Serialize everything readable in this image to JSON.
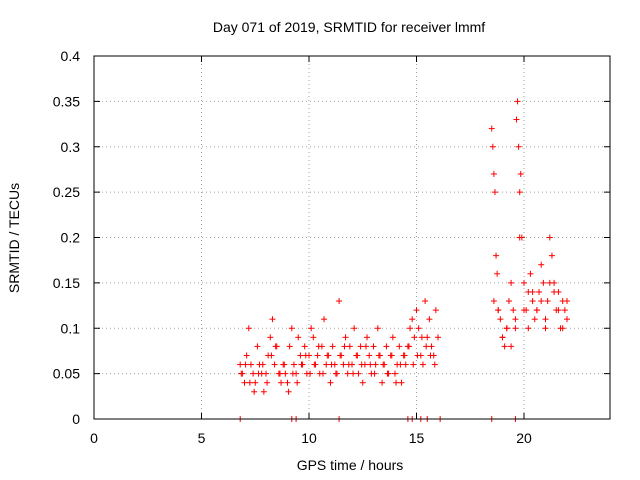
{
  "chart_data": {
    "type": "scatter",
    "title": "Day 071 of 2019, SRMTID for receiver lmmf",
    "xlabel": "GPS time / hours",
    "ylabel": "SRMTID / TECUs",
    "xlim": [
      0,
      24
    ],
    "ylim": [
      0,
      0.4
    ],
    "xticks": [
      "0",
      "5",
      "10",
      "15",
      "20"
    ],
    "yticks": [
      "0",
      "0.05",
      "0.1",
      "0.15",
      "0.2",
      "0.25",
      "0.3",
      "0.35",
      "0.4"
    ],
    "grid": true,
    "marker": "+",
    "color": "#ff0000",
    "series": [
      {
        "name": "SRMTID",
        "x": [
          6.8,
          6.9,
          7.0,
          7.1,
          7.2,
          7.3,
          7.4,
          7.5,
          7.6,
          7.7,
          7.8,
          7.9,
          8.0,
          8.1,
          8.2,
          8.3,
          8.4,
          8.5,
          8.6,
          8.7,
          8.8,
          8.9,
          9.0,
          9.1,
          9.2,
          9.3,
          9.4,
          9.5,
          9.6,
          9.7,
          9.8,
          9.9,
          10.0,
          10.1,
          10.2,
          10.3,
          10.4,
          10.5,
          10.6,
          10.7,
          10.8,
          10.9,
          11.0,
          11.1,
          11.2,
          11.3,
          11.4,
          11.5,
          11.6,
          11.7,
          11.8,
          11.9,
          12.0,
          12.1,
          12.2,
          12.3,
          12.4,
          12.5,
          12.6,
          12.7,
          12.8,
          12.9,
          13.0,
          13.1,
          13.2,
          13.3,
          13.4,
          13.5,
          13.6,
          13.7,
          13.8,
          13.9,
          14.0,
          14.1,
          14.2,
          14.3,
          14.4,
          14.5,
          14.6,
          14.7,
          14.8,
          14.9,
          15.0,
          15.1,
          15.2,
          15.3,
          15.4,
          15.5,
          15.6,
          15.7,
          15.8,
          15.9,
          16.0,
          18.5,
          18.55,
          18.6,
          18.65,
          18.7,
          18.75,
          18.8,
          18.9,
          19.0,
          19.1,
          19.2,
          19.3,
          19.4,
          19.5,
          19.6,
          19.65,
          19.7,
          19.75,
          19.8,
          19.85,
          19.9,
          20.0,
          20.1,
          20.2,
          20.3,
          20.4,
          20.5,
          20.6,
          20.7,
          20.8,
          20.9,
          21.0,
          21.1,
          21.2,
          21.3,
          21.4,
          21.5,
          21.6,
          21.7,
          21.8,
          21.9,
          22.0,
          6.85,
          7.05,
          7.25,
          7.45,
          7.65,
          7.85,
          8.05,
          8.25,
          8.45,
          8.65,
          8.85,
          9.05,
          9.25,
          9.45,
          9.65,
          9.85,
          10.05,
          10.25,
          10.45,
          10.65,
          10.85,
          11.05,
          11.25,
          11.45,
          11.65,
          11.85,
          12.05,
          12.25,
          12.45,
          12.65,
          12.85,
          13.05,
          13.25,
          13.45,
          13.65,
          13.85,
          14.05,
          14.25,
          14.45,
          14.65,
          14.85,
          15.05,
          15.25,
          15.45,
          15.65,
          15.85,
          18.6,
          18.8,
          19.0,
          19.2,
          19.4,
          19.6,
          19.8,
          20.0,
          20.2,
          20.4,
          20.6,
          20.8,
          21.0,
          21.2,
          21.4,
          21.6,
          21.8,
          22.0,
          6.8,
          9.2,
          9.4,
          11.4,
          14.6,
          14.8,
          15.2,
          15.5,
          16.1,
          18.5,
          19.6
        ],
        "y": [
          0.06,
          0.05,
          0.04,
          0.07,
          0.1,
          0.06,
          0.05,
          0.04,
          0.08,
          0.06,
          0.05,
          0.03,
          0.05,
          0.07,
          0.09,
          0.11,
          0.06,
          0.08,
          0.05,
          0.04,
          0.06,
          0.05,
          0.04,
          0.08,
          0.1,
          0.06,
          0.05,
          0.09,
          0.07,
          0.06,
          0.08,
          0.05,
          0.07,
          0.1,
          0.09,
          0.06,
          0.07,
          0.05,
          0.08,
          0.11,
          0.06,
          0.07,
          0.04,
          0.08,
          0.06,
          0.05,
          0.13,
          0.07,
          0.06,
          0.09,
          0.05,
          0.08,
          0.06,
          0.1,
          0.07,
          0.05,
          0.08,
          0.04,
          0.06,
          0.09,
          0.07,
          0.05,
          0.08,
          0.06,
          0.1,
          0.07,
          0.04,
          0.06,
          0.08,
          0.05,
          0.07,
          0.09,
          0.05,
          0.06,
          0.08,
          0.04,
          0.07,
          0.06,
          0.08,
          0.1,
          0.11,
          0.09,
          0.12,
          0.1,
          0.07,
          0.06,
          0.13,
          0.09,
          0.11,
          0.08,
          0.07,
          0.12,
          0.09,
          0.32,
          0.3,
          0.27,
          0.25,
          0.18,
          0.16,
          0.12,
          0.11,
          0.09,
          0.08,
          0.1,
          0.13,
          0.15,
          0.12,
          0.1,
          0.33,
          0.35,
          0.3,
          0.25,
          0.27,
          0.2,
          0.15,
          0.12,
          0.14,
          0.16,
          0.13,
          0.11,
          0.12,
          0.14,
          0.17,
          0.15,
          0.1,
          0.13,
          0.2,
          0.18,
          0.15,
          0.12,
          0.14,
          0.1,
          0.13,
          0.12,
          0.11,
          0.05,
          0.06,
          0.04,
          0.03,
          0.05,
          0.06,
          0.04,
          0.07,
          0.08,
          0.05,
          0.06,
          0.03,
          0.05,
          0.04,
          0.06,
          0.07,
          0.05,
          0.06,
          0.08,
          0.05,
          0.07,
          0.06,
          0.05,
          0.07,
          0.08,
          0.06,
          0.05,
          0.07,
          0.06,
          0.08,
          0.06,
          0.05,
          0.07,
          0.06,
          0.05,
          0.07,
          0.04,
          0.06,
          0.07,
          0.08,
          0.06,
          0.07,
          0.09,
          0.08,
          0.07,
          0.06,
          0.13,
          0.12,
          0.09,
          0.1,
          0.08,
          0.11,
          0.2,
          0.12,
          0.1,
          0.14,
          0.12,
          0.13,
          0.11,
          0.15,
          0.14,
          0.12,
          0.1,
          0.13,
          0,
          0,
          0,
          0,
          0,
          0,
          0,
          0,
          0,
          0,
          0
        ]
      }
    ]
  }
}
